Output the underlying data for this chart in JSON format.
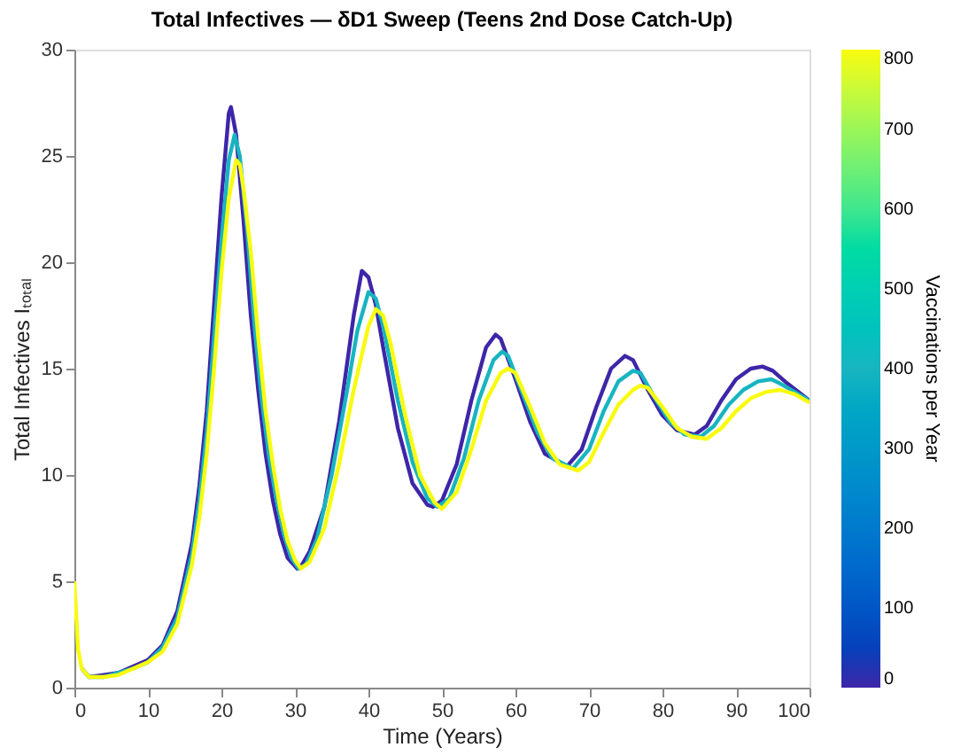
{
  "chart_data": {
    "type": "line",
    "title": "Total Infectives — δD1 Sweep (Teens 2nd Dose Catch-Up)",
    "xlabel": "Time (Years)",
    "ylabel": "Total Infectives Iₜₒₜₐₗ",
    "clabel": "Vaccinations per Year",
    "xlim": [
      0,
      100
    ],
    "xticks": [
      0,
      10,
      20,
      30,
      40,
      50,
      60,
      70,
      80,
      90,
      100
    ],
    "ylim": [
      0,
      30
    ],
    "yticks": [
      0,
      5,
      10,
      15,
      20,
      25,
      30
    ],
    "clim": [
      0,
      800
    ],
    "cticks": [
      0,
      100,
      200,
      300,
      400,
      500,
      600,
      700,
      800
    ],
    "grid": false,
    "marker": "none",
    "line_style": "solid",
    "series": [
      {
        "color": "#3e26a8",
        "x": [
          1,
          2,
          4,
          6,
          8,
          10,
          12,
          14,
          16,
          17,
          18,
          19,
          20,
          21,
          21.3,
          22,
          23,
          24,
          25,
          26,
          27,
          28,
          29,
          30.3,
          31,
          32,
          34,
          36,
          37,
          38,
          39.1,
          40,
          41,
          42,
          44,
          46,
          48,
          48.8,
          50,
          52,
          54,
          56,
          57.3,
          58,
          60,
          62,
          64,
          67,
          69,
          71,
          73,
          74.9,
          76,
          78,
          80,
          82,
          84.4,
          86,
          88,
          90,
          92,
          93.6,
          95,
          97,
          100
        ],
        "values": [
          0.9,
          0.5,
          0.6,
          0.7,
          1.0,
          1.3,
          2.0,
          3.6,
          6.8,
          9.5,
          13,
          18,
          23,
          27,
          27.3,
          26,
          22,
          17.5,
          14,
          11,
          8.8,
          7.2,
          6.1,
          5.6,
          5.8,
          6.4,
          8.5,
          12.5,
          15,
          17.5,
          19.6,
          19.3,
          18,
          16,
          12.2,
          9.6,
          8.6,
          8.5,
          8.8,
          10.5,
          13.5,
          16,
          16.6,
          16.4,
          14.5,
          12.5,
          11,
          10.4,
          11.2,
          13.2,
          15,
          15.6,
          15.4,
          14,
          12.8,
          12.1,
          11.9,
          12.3,
          13.5,
          14.5,
          15,
          15.1,
          14.9,
          14.3,
          13.5
        ]
      },
      {
        "color": "#17b5c0",
        "x": [
          1,
          2,
          4,
          6,
          8,
          10,
          12,
          14,
          16,
          17,
          18,
          19,
          20,
          21,
          21.8,
          22.5,
          23.5,
          24.5,
          25.5,
          26.5,
          27.5,
          28.5,
          29.5,
          30.5,
          31.5,
          33,
          35,
          37,
          38.5,
          40,
          41,
          42,
          44,
          46,
          48,
          49.4,
          51,
          53,
          55,
          57,
          58.2,
          59,
          61,
          63,
          65,
          67.8,
          70,
          72,
          74,
          76,
          77,
          79,
          81,
          83,
          85.2,
          87,
          89,
          91,
          93,
          94.8,
          96,
          98,
          100
        ],
        "values": [
          0.9,
          0.5,
          0.5,
          0.7,
          0.9,
          1.2,
          1.9,
          3.3,
          6.3,
          8.8,
          12,
          16.5,
          21,
          24.8,
          26.0,
          25,
          21.5,
          17,
          13.5,
          10.8,
          8.8,
          7.2,
          6.1,
          5.6,
          5.8,
          7,
          10,
          13.8,
          16.8,
          18.6,
          18.3,
          17,
          13.5,
          10.6,
          8.9,
          8.5,
          8.9,
          10.8,
          13.5,
          15.4,
          15.8,
          15.6,
          13.8,
          12,
          10.8,
          10.3,
          11.2,
          13,
          14.4,
          14.9,
          14.8,
          13.6,
          12.5,
          11.9,
          11.8,
          12.3,
          13.3,
          14,
          14.4,
          14.5,
          14.3,
          13.9,
          13.5
        ]
      },
      {
        "color": "#f9fb0e",
        "x": [
          0,
          0.5,
          1,
          2,
          4,
          6,
          8,
          10,
          12,
          14,
          16,
          17,
          18,
          19,
          20,
          21,
          22,
          22.5,
          23,
          24,
          25,
          26,
          27,
          28,
          29,
          30,
          30.8,
          32,
          34,
          36,
          38,
          40,
          41,
          42,
          43,
          45,
          47,
          49,
          50,
          52,
          54,
          56,
          58,
          59,
          60,
          62,
          64,
          66,
          68.5,
          70,
          72,
          74,
          76,
          77,
          78,
          80,
          82,
          84,
          86,
          88,
          90,
          92,
          94,
          96,
          98,
          100
        ],
        "values": [
          5.0,
          1.8,
          0.9,
          0.5,
          0.5,
          0.6,
          0.9,
          1.2,
          1.7,
          3.0,
          5.8,
          8,
          11,
          15,
          19.5,
          23,
          24.8,
          24.6,
          23.5,
          20.5,
          16.5,
          13,
          10.5,
          8.4,
          6.9,
          6.0,
          5.6,
          5.9,
          7.5,
          10.5,
          14,
          17,
          17.8,
          17.5,
          16.2,
          12.8,
          10,
          8.7,
          8.4,
          9.2,
          11.2,
          13.5,
          14.8,
          15,
          14.8,
          13.2,
          11.5,
          10.5,
          10.2,
          10.6,
          12,
          13.3,
          14,
          14.2,
          14.1,
          13.2,
          12.2,
          11.8,
          11.7,
          12.2,
          13,
          13.6,
          13.9,
          14.0,
          13.8,
          13.4
        ]
      }
    ]
  }
}
